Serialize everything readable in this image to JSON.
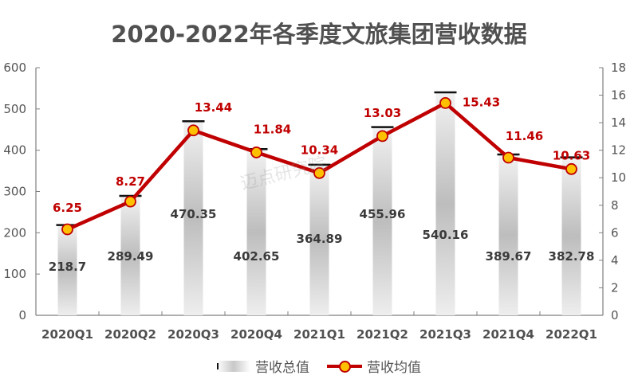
{
  "title": "2020-2022年各季度文旅集团营收数据",
  "watermark": "迈点研究院",
  "legend": {
    "bar_label": "营收总值",
    "line_label": "营收均值"
  },
  "colors": {
    "line": "#c00000",
    "marker_fill": "#ffc000",
    "bar_gradient_mid": "#bdbdbd",
    "axis": "#7f7f7f",
    "bar_label": "#3a3a3a",
    "line_label": "#c00000"
  },
  "chart_data": {
    "type": "bar+line",
    "title": "2020-2022年各季度文旅集团营收数据",
    "categories": [
      "2020Q1",
      "2020Q2",
      "2020Q3",
      "2020Q4",
      "2021Q1",
      "2021Q2",
      "2021Q3",
      "2021Q4",
      "2022Q1"
    ],
    "series": [
      {
        "name": "营收总值",
        "type": "bar",
        "axis": "left",
        "values": [
          218.7,
          289.49,
          470.35,
          402.65,
          364.89,
          455.96,
          540.16,
          389.67,
          382.78
        ]
      },
      {
        "name": "营收均值",
        "type": "line",
        "axis": "right",
        "values": [
          6.25,
          8.27,
          13.44,
          11.84,
          10.34,
          13.03,
          15.43,
          11.46,
          10.63
        ]
      }
    ],
    "left_axis": {
      "ylim": [
        0,
        600
      ],
      "ticks": [
        0,
        100,
        200,
        300,
        400,
        500,
        600
      ]
    },
    "right_axis": {
      "ylim": [
        0,
        18
      ],
      "ticks": [
        0,
        2,
        4,
        6,
        8,
        10,
        12,
        14,
        16,
        18
      ]
    },
    "xlabel": "",
    "ylabel": "",
    "grid": false,
    "legend_position": "bottom"
  }
}
